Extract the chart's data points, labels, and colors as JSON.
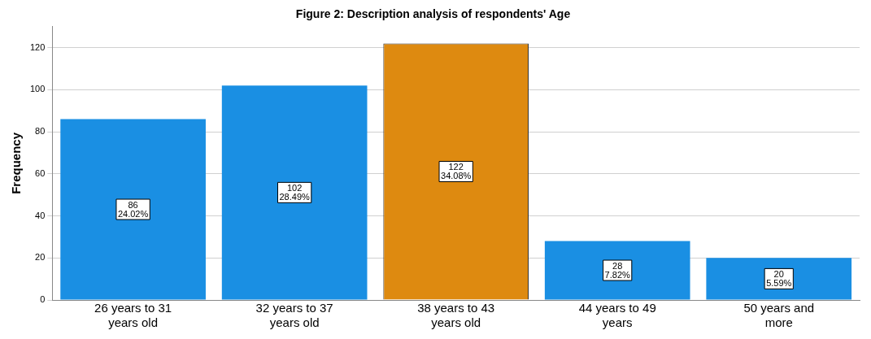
{
  "chart_data": {
    "type": "bar",
    "title": "Figure 2: Description analysis of respondents' Age",
    "ylabel": "Frequency",
    "categories": [
      "26 years to 31 years old",
      "32 years to 37 years old",
      "38 years to 43 years old",
      "44 years to 49 years",
      "50 years and more"
    ],
    "values": [
      86,
      102,
      122,
      28,
      20
    ],
    "colors": [
      "#1a8fe3",
      "#1a8fe3",
      "#de8a10",
      "#1a8fe3",
      "#1a8fe3"
    ],
    "value_labels": [
      "86\n24.02%",
      "102\n28.49%",
      "122\n34.08%",
      "28\n7.82%",
      "20\n5.59%"
    ],
    "ylim": [
      0,
      130
    ],
    "yticks": [
      0,
      20,
      40,
      60,
      80,
      100,
      120
    ],
    "grid": "y",
    "legend": false
  }
}
